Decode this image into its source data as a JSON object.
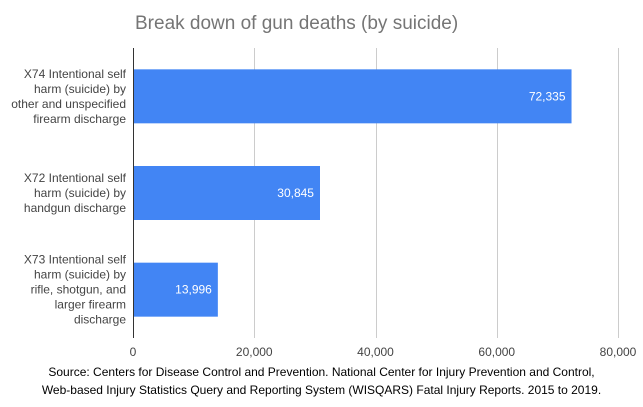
{
  "chart_data": {
    "type": "bar",
    "orientation": "horizontal",
    "title": "Break down of gun deaths (by suicide)",
    "categories": [
      [
        "X74  Intentional self",
        "harm (suicide) by",
        "other and unspecified",
        "firearm discharge"
      ],
      [
        "X72  Intentional self",
        "harm (suicide) by",
        "handgun discharge"
      ],
      [
        "X73  Intentional self",
        "harm (suicide) by",
        "rifle, shotgun, and",
        "larger firearm",
        "discharge"
      ]
    ],
    "values": [
      72335,
      30845,
      13996
    ],
    "value_labels": [
      "72,335",
      "30,845",
      "13,996"
    ],
    "xlim": [
      0,
      80000
    ],
    "xticks": [
      0,
      20000,
      40000,
      60000,
      80000
    ],
    "xtick_labels": [
      "0",
      "20,000",
      "40,000",
      "60,000",
      "80,000"
    ],
    "grid": true,
    "bar_color": "#4285f4"
  },
  "source_text": {
    "line1": "Source: Centers for Disease Control and Prevention. National Center for Injury Prevention and Control,",
    "line2": "Web-based Injury Statistics Query and Reporting System (WISQARS) Fatal Injury Reports. 2015 to 2019."
  }
}
